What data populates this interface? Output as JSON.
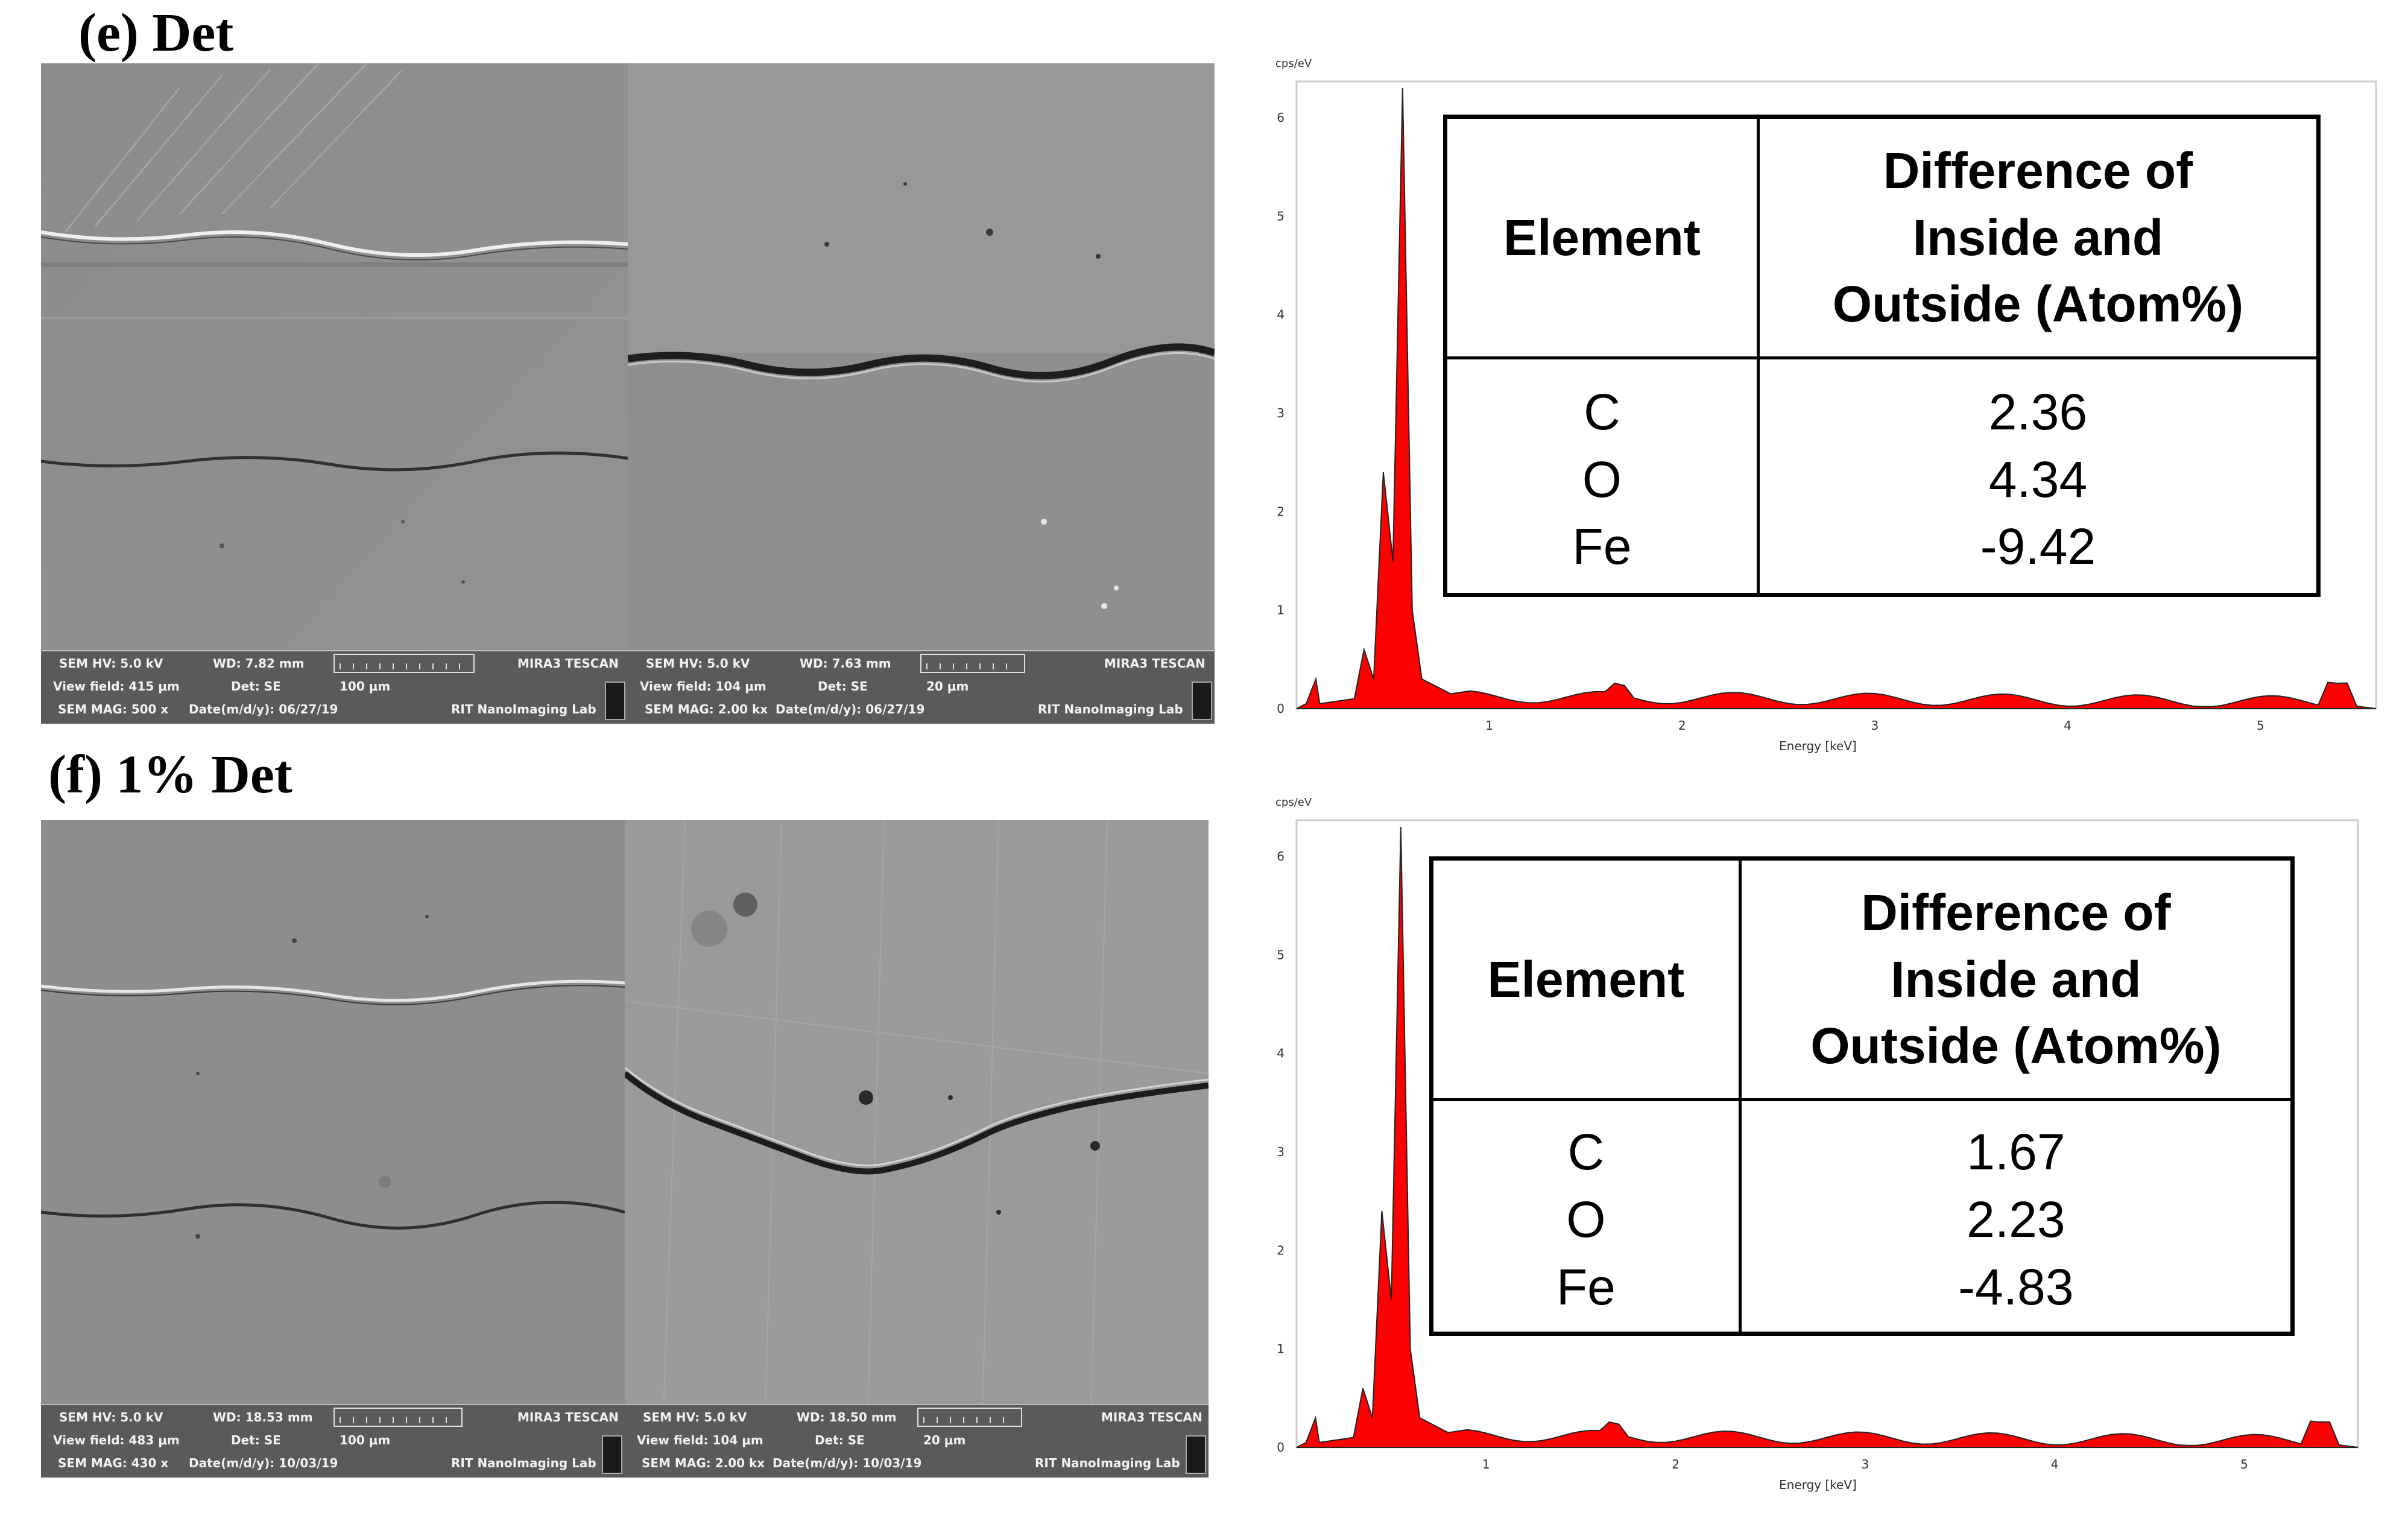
{
  "panels": [
    {
      "label": "(e) Det",
      "sem_left": {
        "bar": {
          "hv": "SEM HV: 5.0 kV",
          "wd": "WD: 7.82 mm",
          "view": "View field: 415 μm",
          "det": "Det: SE",
          "mag": "SEM MAG: 500 x",
          "date": "Date(m/d/y): 06/27/19",
          "scale": "100 μm",
          "maker": "MIRA3 TESCAN",
          "lab": "RIT NanoImaging Lab"
        }
      },
      "sem_right": {
        "bar": {
          "hv": "SEM HV: 5.0 kV",
          "wd": "WD: 7.63 mm",
          "view": "View field: 104 μm",
          "det": "Det: SE",
          "mag": "SEM MAG: 2.00 kx",
          "date": "Date(m/d/y): 06/27/19",
          "scale": "20 μm",
          "maker": "MIRA3 TESCAN",
          "lab": "RIT NanoImaging Lab"
        }
      },
      "eds": {
        "y_unit": "cps/eV",
        "y_ticks": [
          "0",
          "1",
          "2",
          "3",
          "4",
          "5",
          "6"
        ],
        "x_ticks": [
          "1",
          "2",
          "3",
          "4",
          "5"
        ],
        "x_label": "Energy [keV]",
        "spectrum_color": "#ff0000"
      },
      "table": {
        "header_element": "Element",
        "header_diff_1": "Difference of",
        "header_diff_2": "Inside and",
        "header_diff_3": "Outside (Atom%)",
        "elements": [
          "C",
          "O",
          "Fe"
        ],
        "values": [
          "2.36",
          "4.34",
          "-9.42"
        ]
      }
    },
    {
      "label": "(f) 1% Det",
      "sem_left": {
        "bar": {
          "hv": "SEM HV: 5.0 kV",
          "wd": "WD: 18.53 mm",
          "view": "View field: 483 μm",
          "det": "Det: SE",
          "mag": "SEM MAG: 430 x",
          "date": "Date(m/d/y): 10/03/19",
          "scale": "100 μm",
          "maker": "MIRA3 TESCAN",
          "lab": "RIT NanoImaging Lab"
        }
      },
      "sem_right": {
        "bar": {
          "hv": "SEM HV: 5.0 kV",
          "wd": "WD: 18.50 mm",
          "view": "View field: 104 μm",
          "det": "Det: SE",
          "mag": "SEM MAG: 2.00 kx",
          "date": "Date(m/d/y): 10/03/19",
          "scale": "20 μm",
          "maker": "MIRA3 TESCAN",
          "lab": "RIT NanoImaging Lab"
        }
      },
      "eds": {
        "y_unit": "cps/eV",
        "y_ticks": [
          "0",
          "1",
          "2",
          "3",
          "4",
          "5",
          "6"
        ],
        "x_ticks": [
          "1",
          "2",
          "3",
          "4",
          "5"
        ],
        "x_label": "Energy [keV]",
        "spectrum_color": "#ff0000"
      },
      "table": {
        "header_element": "Element",
        "header_diff_1": "Difference of",
        "header_diff_2": "Inside and",
        "header_diff_3": "Outside (Atom%)",
        "elements": [
          "C",
          "O",
          "Fe"
        ],
        "values": [
          "1.67",
          "2.23",
          "-4.83"
        ]
      }
    }
  ]
}
